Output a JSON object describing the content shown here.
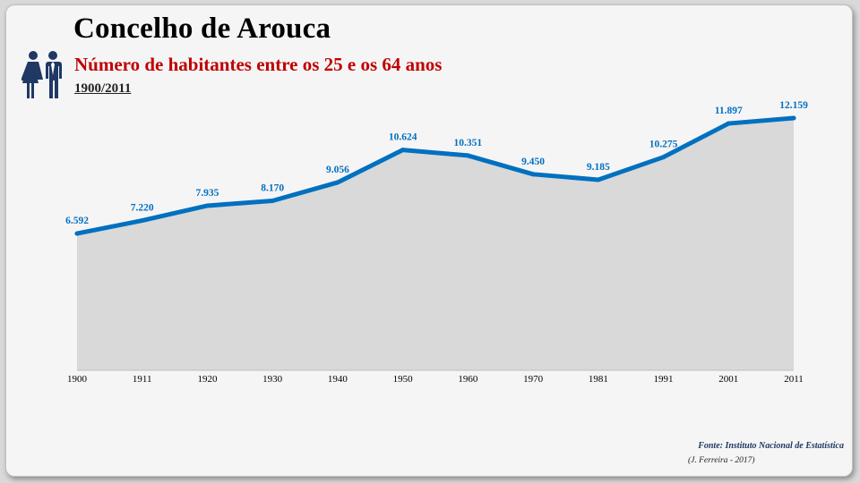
{
  "header": {
    "title": "Concelho de Arouca",
    "subtitle": "Número de habitantes entre os 25 e os 64 anos",
    "period": "1900/2011"
  },
  "footer": {
    "source": "Fonte: Instituto Nacional de Estatística",
    "credit": "(J. Ferreira - 2017)"
  },
  "icons": {
    "people": "man-and-woman-icon"
  },
  "colors": {
    "line": "#0070c0",
    "area": "#d9d9d9",
    "labels": "#0070c0",
    "subtitle": "#c00000",
    "icon": "#1f3864"
  },
  "chart_data": {
    "type": "area",
    "x": [
      "1900",
      "1911",
      "1920",
      "1930",
      "1940",
      "1950",
      "1960",
      "1970",
      "1981",
      "1991",
      "2001",
      "2011"
    ],
    "values": [
      6592,
      7220,
      7935,
      8170,
      9056,
      10624,
      10351,
      9450,
      9185,
      10275,
      11897,
      12159
    ],
    "data_labels": [
      "6.592",
      "7.220",
      "7.935",
      "8.170",
      "9.056",
      "10.624",
      "10.351",
      "9.450",
      "9.185",
      "10.275",
      "11.897",
      "12.159"
    ],
    "xlabel": "",
    "ylabel": "",
    "ylim": [
      0,
      14400
    ],
    "grid": false,
    "legend": "none"
  }
}
